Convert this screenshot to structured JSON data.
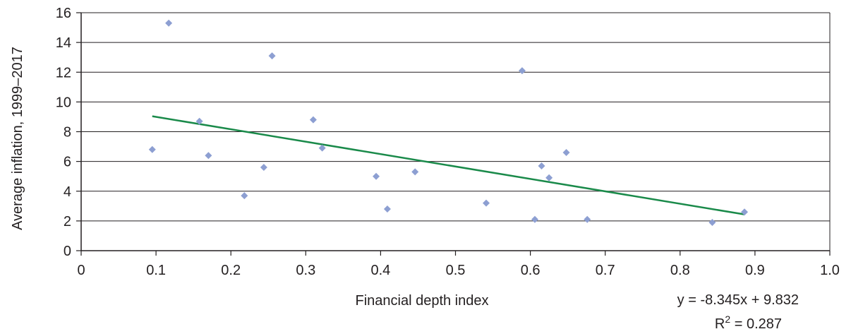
{
  "chart_data": {
    "type": "scatter",
    "title": "",
    "xlabel": "Financial depth index",
    "ylabel": "Average inflation, 1999–2017",
    "xlim": [
      0,
      1.0
    ],
    "ylim": [
      0,
      16
    ],
    "x_ticks": [
      "0",
      "0.1",
      "0.2",
      "0.3",
      "0.4",
      "0.5",
      "0.6",
      "0.7",
      "0.8",
      "0.9",
      "1.0"
    ],
    "y_ticks": [
      "0",
      "2",
      "4",
      "6",
      "8",
      "10",
      "12",
      "14",
      "16"
    ],
    "grid": "horizontal",
    "legend": "none",
    "marker": "diamond",
    "marker_color": "#8d9fd2",
    "trendline_color": "#1a8a4a",
    "points": [
      {
        "x": 0.095,
        "y": 6.8
      },
      {
        "x": 0.117,
        "y": 15.3
      },
      {
        "x": 0.158,
        "y": 8.7
      },
      {
        "x": 0.17,
        "y": 6.4
      },
      {
        "x": 0.218,
        "y": 3.7
      },
      {
        "x": 0.244,
        "y": 5.6
      },
      {
        "x": 0.255,
        "y": 13.1
      },
      {
        "x": 0.31,
        "y": 8.8
      },
      {
        "x": 0.322,
        "y": 6.9
      },
      {
        "x": 0.394,
        "y": 5.0
      },
      {
        "x": 0.409,
        "y": 2.8
      },
      {
        "x": 0.446,
        "y": 5.3
      },
      {
        "x": 0.541,
        "y": 3.2
      },
      {
        "x": 0.589,
        "y": 12.1
      },
      {
        "x": 0.606,
        "y": 2.1
      },
      {
        "x": 0.615,
        "y": 5.7
      },
      {
        "x": 0.625,
        "y": 4.9
      },
      {
        "x": 0.648,
        "y": 6.6
      },
      {
        "x": 0.676,
        "y": 2.1
      },
      {
        "x": 0.843,
        "y": 1.9
      },
      {
        "x": 0.886,
        "y": 2.6
      }
    ],
    "trendline": {
      "slope": -8.345,
      "intercept": 9.832,
      "x_start": 0.095,
      "x_end": 0.886,
      "equation": "y = -8.345x + 9.832",
      "r2_prefix": "R",
      "r2_sup": "2",
      "r2_value": " = 0.287"
    }
  }
}
